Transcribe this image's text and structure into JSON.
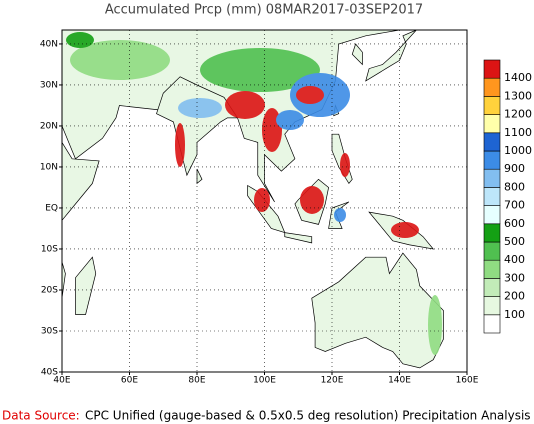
{
  "title": "Accumulated Prcp (mm) 08MAR2017-03SEP2017",
  "map": {
    "xlim": [
      40,
      160
    ],
    "ylim": [
      -40,
      43.4
    ],
    "xticks": [
      {
        "value": 40,
        "label": "40E"
      },
      {
        "value": 60,
        "label": "60E"
      },
      {
        "value": 80,
        "label": "80E"
      },
      {
        "value": 100,
        "label": "100E"
      },
      {
        "value": 120,
        "label": "120E"
      },
      {
        "value": 140,
        "label": "140E"
      },
      {
        "value": 160,
        "label": "160E"
      }
    ],
    "yticks": [
      {
        "value": 40,
        "label": "40N"
      },
      {
        "value": 30,
        "label": "30N"
      },
      {
        "value": 20,
        "label": "20N"
      },
      {
        "value": 10,
        "label": "10N"
      },
      {
        "value": 0,
        "label": "EQ"
      },
      {
        "value": -10,
        "label": "10S"
      },
      {
        "value": -20,
        "label": "20S"
      },
      {
        "value": -30,
        "label": "30S"
      },
      {
        "value": -40,
        "label": "40S"
      }
    ],
    "grid": true
  },
  "colorbar": {
    "levels": [
      100,
      200,
      300,
      400,
      500,
      600,
      700,
      800,
      900,
      1000,
      1100,
      1200,
      1300,
      1400
    ],
    "colors": [
      "#ffffff",
      "#e6f8e0",
      "#c2ecb8",
      "#90dc82",
      "#50c050",
      "#14a014",
      "#e6ffff",
      "#bde6fa",
      "#82bef0",
      "#3c8ce6",
      "#1e64d2",
      "#ffffaa",
      "#ffd23c",
      "#ff961e",
      "#dc1414"
    ]
  },
  "footer": {
    "source_label": "Data Source:",
    "source_text": "CPC Unified (gauge-based & 0.5x0.5 deg resolution) Precipitation Analysis"
  }
}
